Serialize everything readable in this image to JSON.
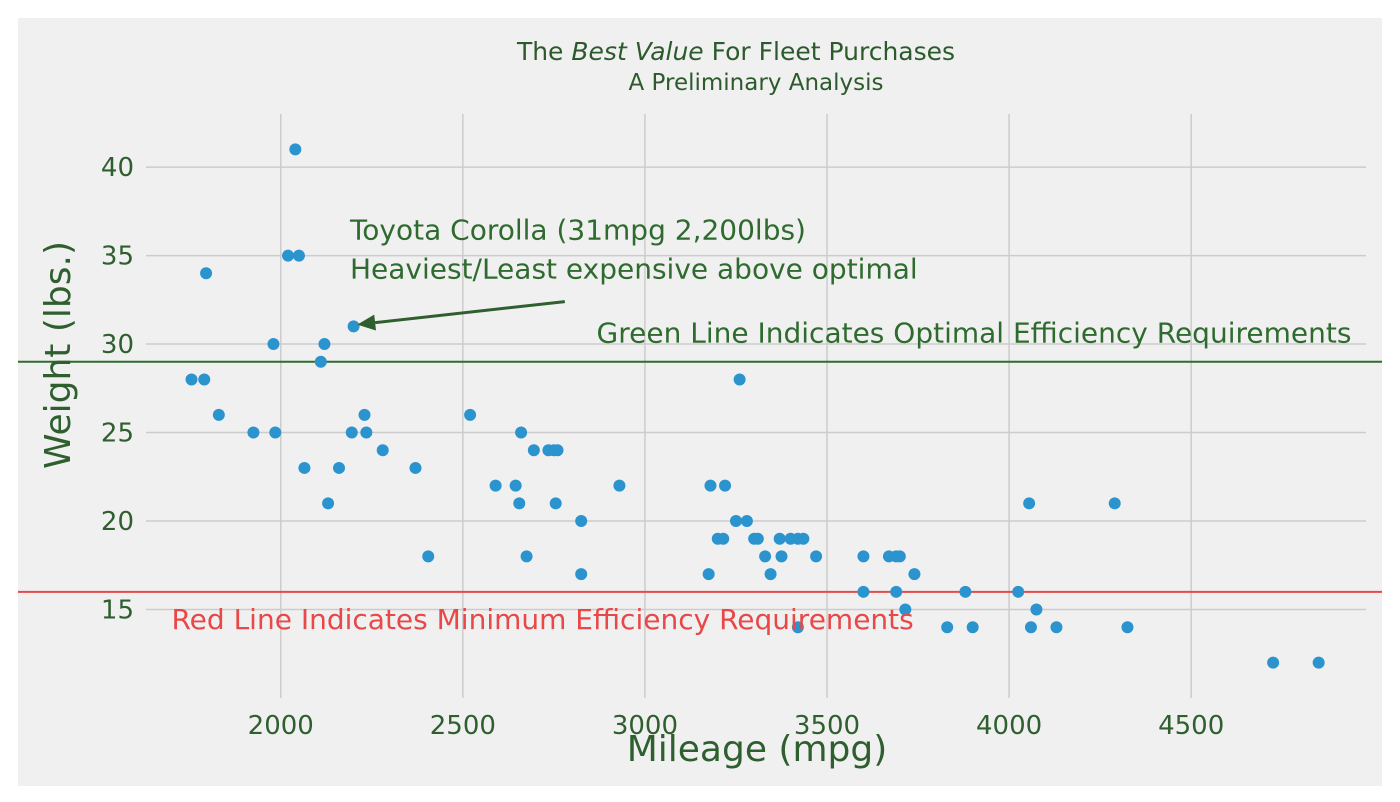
{
  "chart_data": {
    "type": "scatter",
    "title_parts": {
      "pre": "The ",
      "emph": "Best Value",
      "post": " For Fleet Purchases"
    },
    "subtitle": "A Preliminary Analysis",
    "xlabel": "Mileage (mpg)",
    "ylabel": "Weight (lbs.)",
    "xlim": [
      1630,
      4980
    ],
    "ylim": [
      10,
      43
    ],
    "xticks": [
      2000,
      2500,
      3000,
      3500,
      4000,
      4500
    ],
    "yticks": [
      15,
      20,
      25,
      30,
      35,
      40
    ],
    "grid": true,
    "colors": {
      "points": "#2b94cf",
      "green_line": "#2f6b2f",
      "red_line": "#e84848",
      "text": "#2f5f2f",
      "background": "#f0f0f0",
      "grid": "#cccccc"
    },
    "hlines": [
      {
        "name": "optimal",
        "y": 29,
        "color": "#2f6b2f"
      },
      {
        "name": "minimum",
        "y": 16,
        "color": "#e84848"
      }
    ],
    "annotations": [
      {
        "name": "green-line-label",
        "text": "Green Line Indicates Optimal Efficiency Requirements",
        "x": 4940,
        "y": 30.1,
        "align": "end",
        "color": "#2f6b2f"
      },
      {
        "name": "red-line-label",
        "text": "Red Line Indicates Minimum Efficiency Requirements",
        "x": 1700,
        "y": 13.9,
        "align": "start",
        "color": "#e84848"
      },
      {
        "name": "corolla-label-line1",
        "text": "Toyota Corolla (31mpg 2,200lbs)",
        "x": 2190,
        "y": 35.9,
        "align": "start",
        "color": "#2f6b2f"
      },
      {
        "name": "corolla-label-line2",
        "text": "Heaviest/Least expensive above optimal",
        "x": 2190,
        "y": 33.7,
        "align": "start",
        "color": "#2f6b2f"
      }
    ],
    "arrow": {
      "from": [
        2780,
        32.4
      ],
      "to": [
        2210,
        31.1
      ],
      "color": "#2f5f2f"
    },
    "points": [
      [
        2040,
        41
      ],
      [
        1795,
        34
      ],
      [
        2020,
        35
      ],
      [
        2050,
        35
      ],
      [
        2200,
        31
      ],
      [
        1980,
        30
      ],
      [
        2120,
        30
      ],
      [
        2110,
        29
      ],
      [
        1755,
        28
      ],
      [
        1790,
        28
      ],
      [
        1830,
        26
      ],
      [
        1925,
        25
      ],
      [
        1985,
        25
      ],
      [
        2195,
        25
      ],
      [
        2235,
        25
      ],
      [
        2230,
        26
      ],
      [
        2065,
        23
      ],
      [
        2160,
        23
      ],
      [
        2130,
        21
      ],
      [
        2280,
        24
      ],
      [
        2370,
        23
      ],
      [
        2405,
        18
      ],
      [
        2520,
        26
      ],
      [
        2590,
        22
      ],
      [
        2645,
        22
      ],
      [
        2655,
        21
      ],
      [
        2660,
        25
      ],
      [
        2675,
        18
      ],
      [
        2695,
        24
      ],
      [
        2735,
        24
      ],
      [
        2750,
        24
      ],
      [
        2760,
        24
      ],
      [
        2755,
        21
      ],
      [
        2825,
        20
      ],
      [
        2825,
        17
      ],
      [
        2930,
        22
      ],
      [
        3180,
        22
      ],
      [
        3175,
        17
      ],
      [
        3220,
        22
      ],
      [
        3200,
        19
      ],
      [
        3215,
        19
      ],
      [
        3250,
        20
      ],
      [
        3280,
        20
      ],
      [
        3300,
        19
      ],
      [
        3310,
        19
      ],
      [
        3260,
        28
      ],
      [
        3330,
        18
      ],
      [
        3345,
        17
      ],
      [
        3370,
        19
      ],
      [
        3375,
        18
      ],
      [
        3400,
        19
      ],
      [
        3420,
        19
      ],
      [
        3435,
        19
      ],
      [
        3420,
        14
      ],
      [
        3470,
        18
      ],
      [
        3600,
        18
      ],
      [
        3600,
        16
      ],
      [
        3670,
        18
      ],
      [
        3690,
        18
      ],
      [
        3700,
        18
      ],
      [
        3690,
        16
      ],
      [
        3715,
        15
      ],
      [
        3740,
        17
      ],
      [
        3830,
        14
      ],
      [
        3880,
        16
      ],
      [
        3900,
        14
      ],
      [
        4025,
        16
      ],
      [
        4055,
        21
      ],
      [
        4060,
        14
      ],
      [
        4075,
        15
      ],
      [
        4130,
        14
      ],
      [
        4290,
        21
      ],
      [
        4325,
        14
      ],
      [
        4725,
        12
      ],
      [
        4850,
        12
      ]
    ]
  }
}
